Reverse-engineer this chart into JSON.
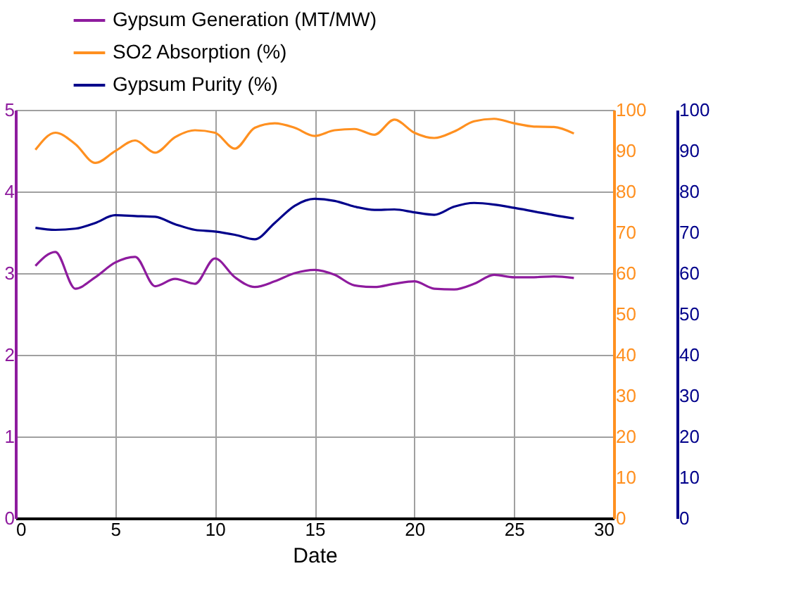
{
  "chart_data": {
    "type": "line",
    "xlabel": "Date",
    "x": [
      1,
      2,
      3,
      4,
      5,
      6,
      7,
      8,
      9,
      10,
      11,
      12,
      13,
      14,
      15,
      16,
      17,
      18,
      19,
      20,
      21,
      22,
      23,
      24,
      25,
      26,
      27,
      28
    ],
    "xlim": [
      0,
      30
    ],
    "xticks": [
      0,
      5,
      10,
      15,
      20,
      25,
      30
    ],
    "ylim": [
      0,
      5
    ],
    "yticks": [
      0,
      1,
      2,
      3,
      4,
      5
    ],
    "y2lim": [
      0,
      100
    ],
    "y2ticks": [
      0,
      10,
      20,
      30,
      40,
      50,
      60,
      70,
      80,
      90,
      100
    ],
    "y3lim": [
      0,
      100
    ],
    "y3ticks": [
      0,
      10,
      20,
      30,
      40,
      50,
      60,
      70,
      80,
      90,
      100
    ],
    "grid": true,
    "legend": "top",
    "marker": "none",
    "line_style": "solid",
    "series": [
      {
        "name": "Gypsum Generation (MT/MW)",
        "color": "#8e1b9e",
        "axis": "y",
        "values": [
          3.09,
          3.26,
          2.81,
          2.95,
          3.13,
          3.2,
          2.84,
          2.93,
          2.87,
          3.18,
          2.95,
          2.83,
          2.9,
          3.0,
          3.04,
          2.98,
          2.85,
          2.83,
          2.87,
          2.9,
          2.81,
          2.8,
          2.87,
          2.98,
          2.95,
          2.95,
          2.96,
          2.94
        ]
      },
      {
        "name": "SO2 Absorption (%)",
        "color": "#ff9020",
        "axis": "y2",
        "values": [
          90.2,
          94.4,
          91.6,
          87,
          89.9,
          92.5,
          89.5,
          93.3,
          95,
          94.4,
          90.5,
          95.6,
          96.7,
          95.6,
          93.6,
          95,
          95.3,
          93.9,
          97.6,
          94.4,
          93.1,
          94.7,
          97.2,
          97.8,
          96.7,
          95.9,
          95.8,
          94.2
        ]
      },
      {
        "name": "Gypsum Purity (%)",
        "color": "#00008b",
        "axis": "y3",
        "values": [
          71.1,
          70.6,
          70.9,
          72.3,
          74.2,
          74,
          73.8,
          72,
          70.6,
          70.2,
          69.4,
          68.3,
          72.3,
          76.5,
          78.2,
          77.7,
          76.3,
          75.5,
          75.6,
          74.9,
          74.3,
          76.3,
          77.2,
          76.8,
          76,
          75.1,
          74.2,
          73.4
        ]
      }
    ]
  }
}
